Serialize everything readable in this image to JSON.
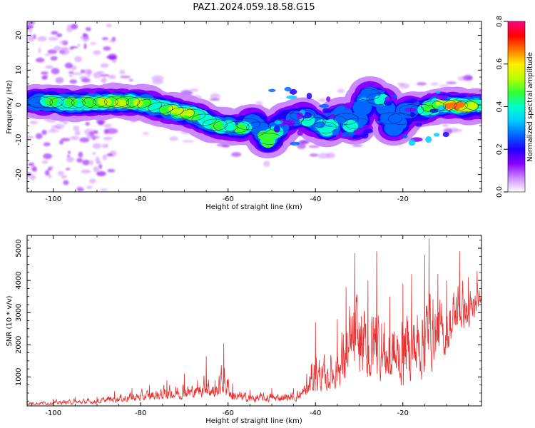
{
  "title": "PAZ1.2024.059.18.58.G15",
  "chart_data": [
    {
      "type": "heatmap",
      "xlabel": "Height of straight line (km)",
      "ylabel": "Frequency (Hz)",
      "xlim": [
        -106,
        -2
      ],
      "ylim": [
        -25,
        24
      ],
      "xticks": [
        -100,
        -80,
        -60,
        -40,
        -20
      ],
      "yticks": [
        -20,
        -10,
        0,
        10,
        20
      ],
      "colorbar": {
        "label": "Normalized spectral amplitude",
        "range": [
          0,
          0.8
        ],
        "ticks": [
          "0.0",
          "0.2",
          "0.4",
          "0.6",
          "0.8"
        ],
        "colors": [
          "#ffffff",
          "#cc88ff",
          "#8800ff",
          "#2200ff",
          "#0066ff",
          "#00ccff",
          "#00ffcc",
          "#33ff33",
          "#bbff00",
          "#ffee00",
          "#ff7700",
          "#ff0000",
          "#ff0088"
        ]
      },
      "ridge": [
        {
          "x": -103,
          "f": 0.8,
          "a": 0.35
        },
        {
          "x": -100,
          "f": 0.8,
          "a": 0.45
        },
        {
          "x": -97,
          "f": 0.5,
          "a": 0.4
        },
        {
          "x": -94,
          "f": 0.6,
          "a": 0.4
        },
        {
          "x": -91,
          "f": 0.7,
          "a": 0.45
        },
        {
          "x": -88,
          "f": 0.9,
          "a": 0.55
        },
        {
          "x": -85,
          "f": 0.9,
          "a": 0.5
        },
        {
          "x": -82,
          "f": 0.8,
          "a": 0.55
        },
        {
          "x": -79,
          "f": 0.5,
          "a": 0.45
        },
        {
          "x": -76,
          "f": -0.8,
          "a": 0.4
        },
        {
          "x": -73,
          "f": -1.5,
          "a": 0.5
        },
        {
          "x": -70,
          "f": -2.5,
          "a": 0.55
        },
        {
          "x": -67,
          "f": -3.0,
          "a": 0.4
        },
        {
          "x": -64,
          "f": -5.5,
          "a": 0.45
        },
        {
          "x": -61,
          "f": -6.0,
          "a": 0.35
        },
        {
          "x": -57,
          "f": -6.5,
          "a": 0.4
        },
        {
          "x": -54,
          "f": -4.5,
          "a": 0.3
        },
        {
          "x": -51,
          "f": -10.5,
          "a": 0.45
        },
        {
          "x": -47,
          "f": -4.5,
          "a": 0.3
        },
        {
          "x": -43,
          "f": -3.0,
          "a": 0.35
        },
        {
          "x": -40,
          "f": -5.5,
          "a": 0.35
        },
        {
          "x": -37,
          "f": -7.0,
          "a": 0.35
        },
        {
          "x": -34,
          "f": -2.5,
          "a": 0.3
        },
        {
          "x": -31,
          "f": -7.0,
          "a": 0.35
        },
        {
          "x": -28,
          "f": 3.0,
          "a": 0.3
        },
        {
          "x": -25,
          "f": 1.5,
          "a": 0.35
        },
        {
          "x": -22,
          "f": -6.5,
          "a": 0.3
        },
        {
          "x": -19,
          "f": -1.5,
          "a": 0.3
        },
        {
          "x": -15,
          "f": -1.5,
          "a": 0.35
        },
        {
          "x": -12,
          "f": 0.0,
          "a": 0.45
        },
        {
          "x": -9,
          "f": 0.0,
          "a": 0.7
        },
        {
          "x": -6,
          "f": -0.5,
          "a": 0.55
        },
        {
          "x": -3,
          "f": 0.0,
          "a": 0.45
        }
      ]
    },
    {
      "type": "line",
      "xlabel": "Height of straight line (km)",
      "ylabel": "SNR (10 * v/v)",
      "xlim": [
        -106,
        -2
      ],
      "ylim": [
        100,
        5400
      ],
      "xticks": [
        -100,
        -80,
        -60,
        -40,
        -20
      ],
      "yticks": [
        1000,
        2000,
        3000,
        4000,
        5000
      ],
      "color": "#e83030",
      "envelope": [
        {
          "x": -106,
          "lo": 120,
          "hi": 280
        },
        {
          "x": -100,
          "lo": 120,
          "hi": 320
        },
        {
          "x": -95,
          "lo": 130,
          "hi": 380
        },
        {
          "x": -90,
          "lo": 150,
          "hi": 380
        },
        {
          "x": -86,
          "lo": 180,
          "hi": 560
        },
        {
          "x": -82,
          "lo": 200,
          "hi": 650
        },
        {
          "x": -78,
          "lo": 200,
          "hi": 750
        },
        {
          "x": -74,
          "lo": 250,
          "hi": 900
        },
        {
          "x": -70,
          "lo": 250,
          "hi": 1100
        },
        {
          "x": -67,
          "lo": 300,
          "hi": 900
        },
        {
          "x": -65,
          "lo": 300,
          "hi": 1650
        },
        {
          "x": -63,
          "lo": 250,
          "hi": 900
        },
        {
          "x": -61,
          "lo": 300,
          "hi": 2050
        },
        {
          "x": -59,
          "lo": 200,
          "hi": 800
        },
        {
          "x": -55,
          "lo": 180,
          "hi": 600
        },
        {
          "x": -50,
          "lo": 180,
          "hi": 650
        },
        {
          "x": -45,
          "lo": 200,
          "hi": 650
        },
        {
          "x": -42,
          "lo": 250,
          "hi": 1100
        },
        {
          "x": -40,
          "lo": 300,
          "hi": 2700
        },
        {
          "x": -38,
          "lo": 400,
          "hi": 1700
        },
        {
          "x": -35,
          "lo": 500,
          "hi": 2800
        },
        {
          "x": -33,
          "lo": 400,
          "hi": 3800
        },
        {
          "x": -31,
          "lo": 500,
          "hi": 4850
        },
        {
          "x": -28,
          "lo": 500,
          "hi": 4000
        },
        {
          "x": -26,
          "lo": 600,
          "hi": 4900
        },
        {
          "x": -23,
          "lo": 500,
          "hi": 3500
        },
        {
          "x": -20,
          "lo": 400,
          "hi": 3900
        },
        {
          "x": -18,
          "lo": 600,
          "hi": 4200
        },
        {
          "x": -15,
          "lo": 700,
          "hi": 4800
        },
        {
          "x": -14,
          "lo": 900,
          "hi": 5300
        },
        {
          "x": -12,
          "lo": 1200,
          "hi": 4200
        },
        {
          "x": -10,
          "lo": 1400,
          "hi": 4000
        },
        {
          "x": -7,
          "lo": 2300,
          "hi": 4900
        },
        {
          "x": -5,
          "lo": 2200,
          "hi": 4100
        },
        {
          "x": -3,
          "lo": 2700,
          "hi": 4300
        },
        {
          "x": -2,
          "lo": 3300,
          "hi": 3600
        }
      ]
    }
  ]
}
